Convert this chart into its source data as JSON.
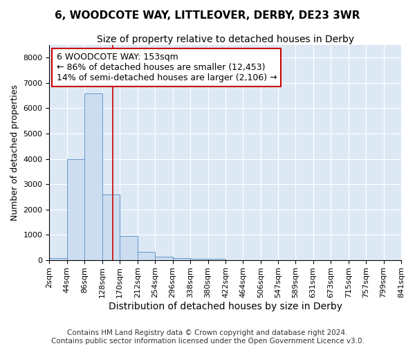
{
  "title1": "6, WOODCOTE WAY, LITTLEOVER, DERBY, DE23 3WR",
  "title2": "Size of property relative to detached houses in Derby",
  "xlabel": "Distribution of detached houses by size in Derby",
  "ylabel": "Number of detached properties",
  "bin_edges": [
    2,
    44,
    86,
    128,
    170,
    212,
    254,
    296,
    338,
    380,
    422,
    464,
    506,
    547,
    589,
    631,
    673,
    715,
    757,
    799,
    841
  ],
  "bar_heights": [
    75,
    4000,
    6600,
    2600,
    950,
    325,
    125,
    75,
    50,
    50,
    0,
    0,
    0,
    0,
    0,
    0,
    0,
    0,
    0,
    0
  ],
  "bar_color": "#ccddf0",
  "bar_edgecolor": "#6699cc",
  "property_line_x": 153,
  "property_line_color": "#cc0000",
  "ylim": [
    0,
    8500
  ],
  "yticks": [
    0,
    1000,
    2000,
    3000,
    4000,
    5000,
    6000,
    7000,
    8000
  ],
  "annotation_line1": "6 WOODCOTE WAY: 153sqm",
  "annotation_line2": "← 86% of detached houses are smaller (12,453)",
  "annotation_line3": "14% of semi-detached houses are larger (2,106) →",
  "footer_text1": "Contains HM Land Registry data © Crown copyright and database right 2024.",
  "footer_text2": "Contains public sector information licensed under the Open Government Licence v3.0.",
  "fig_background": "#ffffff",
  "ax_background": "#dde8f5",
  "grid_color": "#ffffff",
  "title1_fontsize": 11,
  "title2_fontsize": 10,
  "xlabel_fontsize": 10,
  "ylabel_fontsize": 9,
  "tick_fontsize": 8,
  "footer_fontsize": 7.5,
  "annotation_fontsize": 9
}
